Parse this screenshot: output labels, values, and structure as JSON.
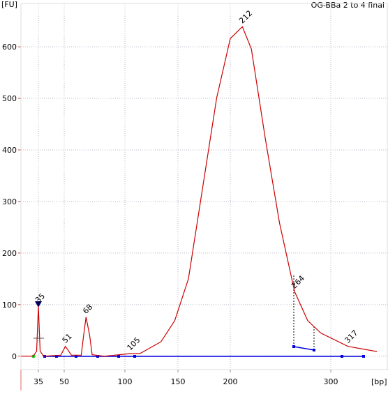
{
  "chart_data": {
    "type": "line",
    "title": "OG-BBa 2 to 4 final",
    "ylabel": "[FU]",
    "xlabel": "[bp]",
    "x": [
      25,
      32,
      34,
      35,
      36,
      38,
      48,
      51,
      56,
      64,
      66,
      68,
      71,
      73,
      83,
      105,
      114,
      134,
      147,
      160,
      173,
      187,
      200,
      212,
      221,
      235,
      249,
      264,
      277,
      290,
      317,
      346
    ],
    "values": [
      0,
      0,
      10,
      97,
      10,
      0,
      2,
      19,
      2,
      2,
      40,
      76,
      40,
      3,
      0,
      5,
      5,
      28,
      69,
      150,
      319,
      501,
      616,
      639,
      596,
      420,
      258,
      125,
      69,
      45,
      19,
      9
    ],
    "color": "#cc0000",
    "peak_labels": [
      35,
      51,
      68,
      105,
      212,
      264,
      317
    ],
    "xlim": [
      25,
      357
    ],
    "xticks": [
      35,
      50,
      100,
      150,
      200,
      300
    ],
    "ylim": [
      -26,
      684
    ],
    "yticks": [
      0,
      100,
      200,
      300,
      400,
      500,
      600
    ],
    "grid": true
  }
}
